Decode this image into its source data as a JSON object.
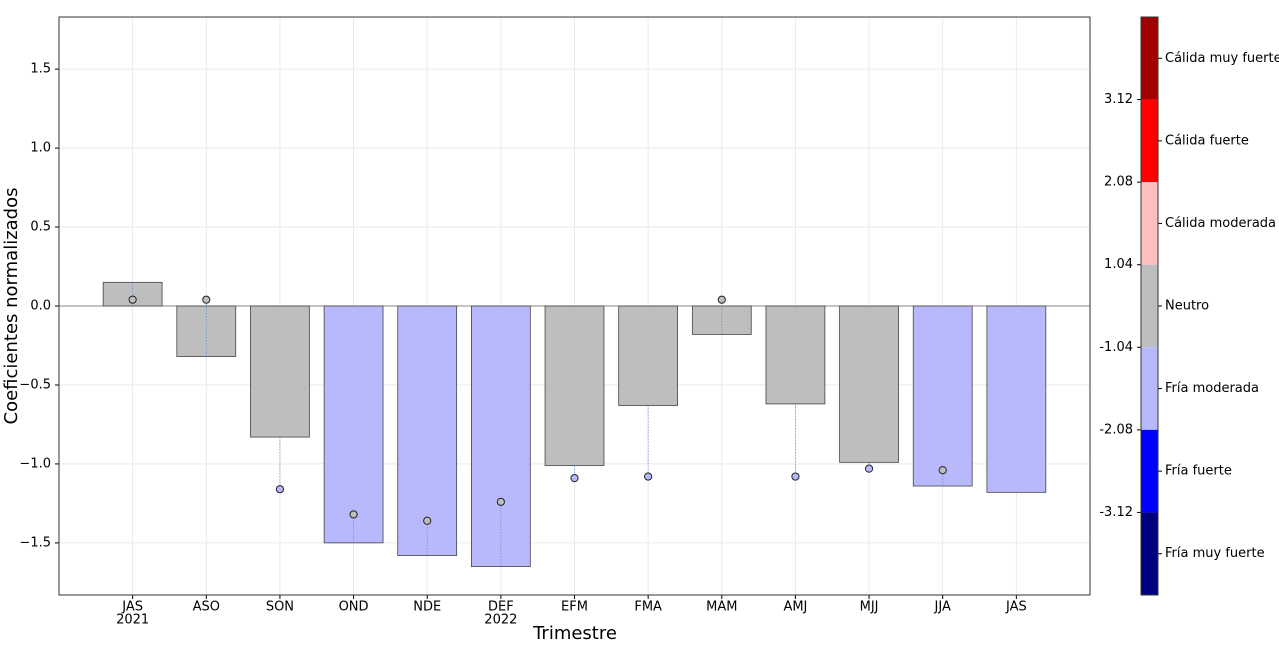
{
  "chart_data": {
    "type": "bar",
    "xlabel": "Trimestre",
    "ylabel": "Coeficientes normalizados",
    "categories": [
      "JAS",
      "ASO",
      "SON",
      "OND",
      "NDE",
      "DEF",
      "EFM",
      "FMA",
      "MAM",
      "AMJ",
      "MJJ",
      "JJA",
      "JAS"
    ],
    "category_sublabels": [
      "2021",
      null,
      null,
      null,
      null,
      "2022",
      null,
      null,
      null,
      null,
      null,
      null,
      null
    ],
    "values": [
      0.15,
      -0.32,
      -0.83,
      -1.5,
      -1.58,
      -1.65,
      -1.01,
      -0.63,
      -0.18,
      -0.62,
      -0.99,
      -1.14,
      -1.18
    ],
    "bar_colors": [
      "#bebebe",
      "#bebebe",
      "#bebebe",
      "#b8b8fd",
      "#b8b8fd",
      "#b8b8fd",
      "#bebebe",
      "#bebebe",
      "#bebebe",
      "#bebebe",
      "#bebebe",
      "#b8b8fd",
      "#b8b8fd"
    ],
    "points": [
      0.04,
      0.04,
      -1.16,
      -1.32,
      -1.36,
      -1.24,
      -1.09,
      -1.08,
      0.04,
      -1.08,
      -1.03,
      -1.04,
      null
    ],
    "point_colors": [
      "#bebebe",
      "#bebebe",
      "#b8b8fd",
      "#bebebe",
      "#bebebe",
      "#bebebe",
      "#b8b8fd",
      "#b8b8fd",
      "#bebebe",
      "#b8b8fd",
      "#b8b8fd",
      "#bebebe",
      null
    ],
    "ylim": [
      -1.83,
      1.83
    ],
    "yticks": [
      -1.5,
      -1.0,
      -0.5,
      0.0,
      0.5,
      1.0,
      1.5
    ],
    "ytick_labels": [
      "−1.5",
      "−1.0",
      "−0.5",
      "0.0",
      "0.5",
      "1.0",
      "1.5"
    ],
    "grid": true,
    "colorbar": {
      "classes": [
        {
          "name": "Cálida muy fuerte",
          "color": "#a00000"
        },
        {
          "name": "Cálida fuerte",
          "color": "#ff0000"
        },
        {
          "name": "Cálida moderada",
          "color": "#ffbfbf"
        },
        {
          "name": "Neutro",
          "color": "#bebebe"
        },
        {
          "name": "Fría moderada",
          "color": "#b8b8fd"
        },
        {
          "name": "Fría fuerte",
          "color": "#0000ff"
        },
        {
          "name": "Fría muy fuerte",
          "color": "#00007f"
        }
      ],
      "boundaries": [
        3.12,
        2.08,
        1.04,
        -1.04,
        -2.08,
        -3.12
      ]
    }
  }
}
